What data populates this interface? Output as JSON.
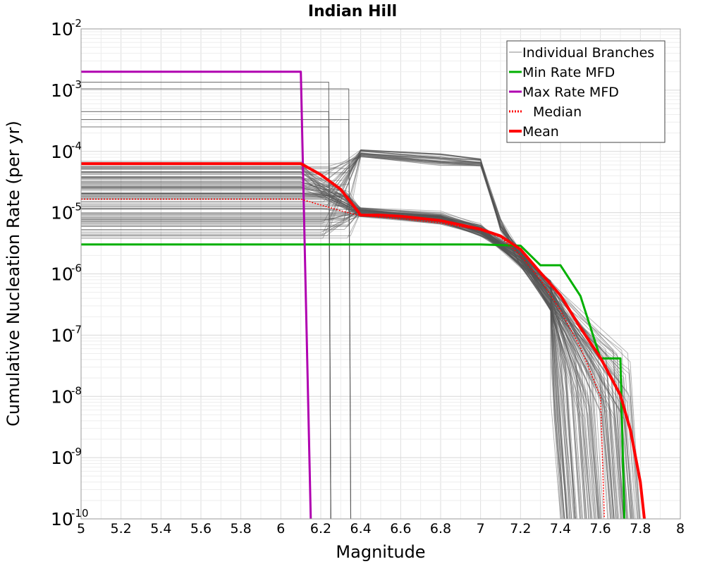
{
  "chart_data": {
    "type": "line",
    "title": "Indian Hill",
    "xlabel": "Magnitude",
    "ylabel": "Cumulative Nucleation Rate (per yr)",
    "xlim": [
      5,
      8
    ],
    "ylim_log10": [
      -10,
      -2
    ],
    "x_ticks": [
      "5",
      "5.2",
      "5.4",
      "5.6",
      "5.8",
      "6",
      "6.2",
      "6.4",
      "6.6",
      "6.8",
      "7",
      "7.2",
      "7.4",
      "7.6",
      "7.8",
      "8"
    ],
    "y_ticks": [
      {
        "base": "10",
        "exp": "-2",
        "value": -2
      },
      {
        "base": "10",
        "exp": "-3",
        "value": -3
      },
      {
        "base": "10",
        "exp": "-4",
        "value": -4
      },
      {
        "base": "10",
        "exp": "-5",
        "value": -5
      },
      {
        "base": "10",
        "exp": "-6",
        "value": -6
      },
      {
        "base": "10",
        "exp": "-7",
        "value": -7
      },
      {
        "base": "10",
        "exp": "-8",
        "value": -8
      },
      {
        "base": "10",
        "exp": "-9",
        "value": -9
      },
      {
        "base": "10",
        "exp": "-10",
        "value": -10
      }
    ],
    "grid": true,
    "legend_position": "top-right",
    "legend": [
      {
        "label": "Individual Branches",
        "color": "#888888",
        "style": "thin"
      },
      {
        "label": "Min Rate MFD",
        "color": "#00b000",
        "style": "solid"
      },
      {
        "label": "Max Rate MFD",
        "color": "#b000b0",
        "style": "solid"
      },
      {
        "label": "Median",
        "color": "#ff0000",
        "style": "dotted"
      },
      {
        "label": "Mean",
        "color": "#ff0000",
        "style": "thick"
      }
    ],
    "branch_color": "#555555",
    "series": [
      {
        "name": "Min Rate MFD",
        "color": "#00b000",
        "points": [
          [
            5.0,
            -5.52
          ],
          [
            7.0,
            -5.52
          ],
          [
            7.2,
            -5.54
          ],
          [
            7.3,
            -5.86
          ],
          [
            7.4,
            -5.86
          ],
          [
            7.5,
            -6.36
          ],
          [
            7.6,
            -7.38
          ],
          [
            7.7,
            -7.38
          ],
          [
            7.72,
            -10.2
          ]
        ]
      },
      {
        "name": "Max Rate MFD",
        "color": "#b000b0",
        "points": [
          [
            5.0,
            -2.7
          ],
          [
            6.1,
            -2.7
          ],
          [
            6.15,
            -10.2
          ]
        ]
      },
      {
        "name": "Median",
        "color": "#ff0000",
        "dotted": true,
        "points": [
          [
            5.0,
            -4.78
          ],
          [
            6.1,
            -4.78
          ],
          [
            6.3,
            -4.97
          ],
          [
            6.4,
            -5.05
          ],
          [
            6.6,
            -5.1
          ],
          [
            6.8,
            -5.17
          ],
          [
            7.0,
            -5.29
          ],
          [
            7.1,
            -5.4
          ],
          [
            7.2,
            -5.7
          ],
          [
            7.3,
            -6.1
          ],
          [
            7.4,
            -6.6
          ],
          [
            7.5,
            -7.2
          ],
          [
            7.55,
            -7.6
          ],
          [
            7.6,
            -8.0
          ],
          [
            7.62,
            -10.2
          ]
        ]
      },
      {
        "name": "Mean",
        "color": "#ff0000",
        "points": [
          [
            5.0,
            -4.2
          ],
          [
            6.1,
            -4.2
          ],
          [
            6.2,
            -4.38
          ],
          [
            6.3,
            -4.62
          ],
          [
            6.4,
            -5.04
          ],
          [
            6.5,
            -5.04
          ],
          [
            6.6,
            -5.06
          ],
          [
            6.8,
            -5.13
          ],
          [
            7.0,
            -5.27
          ],
          [
            7.1,
            -5.38
          ],
          [
            7.2,
            -5.6
          ],
          [
            7.3,
            -5.98
          ],
          [
            7.4,
            -6.35
          ],
          [
            7.5,
            -6.88
          ],
          [
            7.6,
            -7.37
          ],
          [
            7.7,
            -7.98
          ],
          [
            7.75,
            -8.55
          ],
          [
            7.8,
            -9.4
          ],
          [
            7.82,
            -10.2
          ]
        ]
      }
    ]
  }
}
